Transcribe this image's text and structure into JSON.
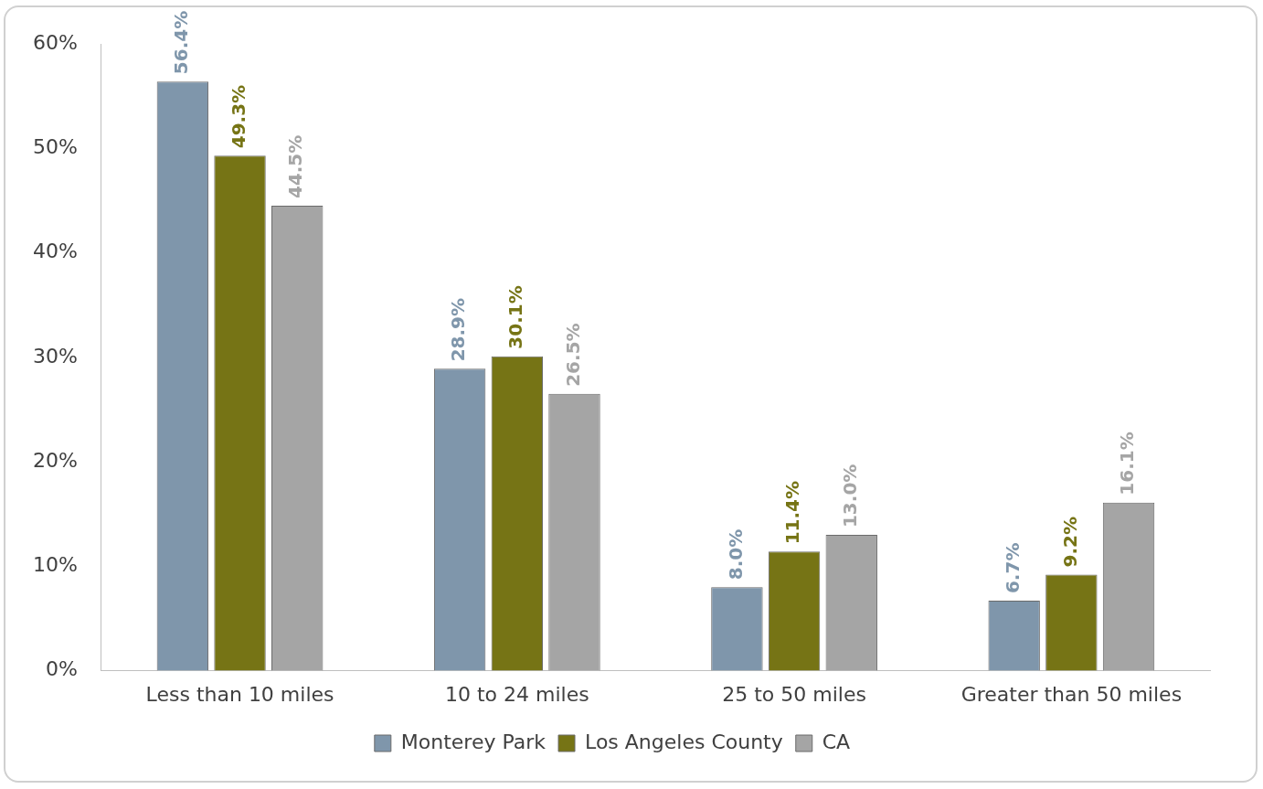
{
  "chart_data": {
    "type": "bar",
    "categories": [
      "Less than 10 miles",
      "10 to 24 miles",
      "25 to 50 miles",
      "Greater than 50 miles"
    ],
    "series": [
      {
        "name": "Monterey Park",
        "color": "#7f96ab",
        "values": [
          56.4,
          28.9,
          8.0,
          6.7
        ]
      },
      {
        "name": "Los Angeles County",
        "color": "#767415",
        "values": [
          49.3,
          30.1,
          11.4,
          9.2
        ]
      },
      {
        "name": "CA",
        "color": "#a5a5a5",
        "values": [
          44.5,
          26.5,
          13.0,
          16.1
        ]
      }
    ],
    "value_labels": [
      [
        "56.4%",
        "28.9%",
        "8.0%",
        "6.7%"
      ],
      [
        "49.3%",
        "30.1%",
        "11.4%",
        "9.2%"
      ],
      [
        "44.5%",
        "26.5%",
        "13.0%",
        "16.1%"
      ]
    ],
    "ylim": [
      0,
      60
    ],
    "yticks": [
      {
        "value": 0,
        "label": "0%"
      },
      {
        "value": 10,
        "label": "10%"
      },
      {
        "value": 20,
        "label": "20%"
      },
      {
        "value": 30,
        "label": "30%"
      },
      {
        "value": 40,
        "label": "40%"
      },
      {
        "value": 50,
        "label": "50%"
      },
      {
        "value": 60,
        "label": "60%"
      }
    ],
    "grid": false,
    "legend": "bottom"
  }
}
